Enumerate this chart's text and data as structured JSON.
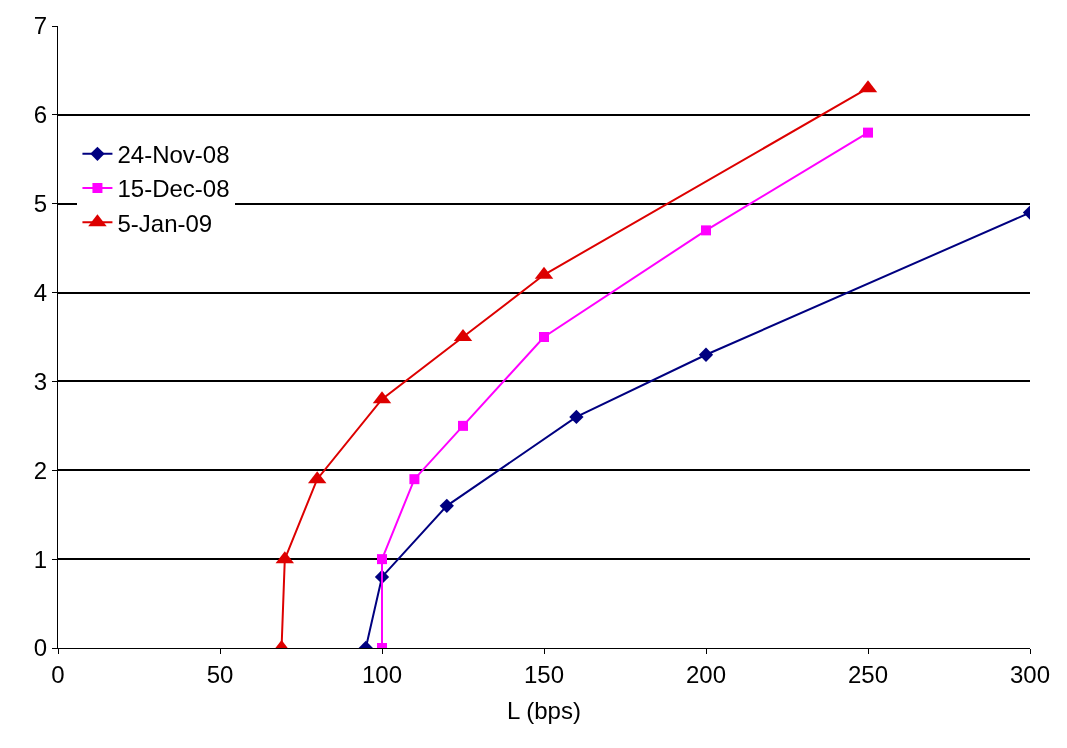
{
  "chart_data": {
    "type": "line",
    "xlabel": "L (bps)",
    "xlim": [
      0,
      300
    ],
    "xticks": [
      0,
      50,
      100,
      150,
      200,
      250,
      300
    ],
    "ylim": [
      0,
      7
    ],
    "yticks": [
      0,
      1,
      2,
      3,
      4,
      5,
      6,
      7
    ],
    "grid": "y",
    "legend": "top left",
    "line_style": "solid",
    "series": [
      {
        "name": "24-Nov-08",
        "color": "#000080",
        "marker": "diamond",
        "x": [
          95,
          100,
          120,
          160,
          200,
          300
        ],
        "values": [
          0,
          0.8,
          1.6,
          2.6,
          3.3,
          4.9
        ]
      },
      {
        "name": "15-Dec-08",
        "color": "#ff00ff",
        "marker": "square",
        "x": [
          100,
          100,
          110,
          125,
          150,
          200,
          250
        ],
        "values": [
          0,
          1.0,
          1.9,
          2.5,
          3.5,
          4.7,
          5.8
        ]
      },
      {
        "name": "5-Jan-09",
        "color": "#dd0000",
        "marker": "triangle",
        "x": [
          69,
          70,
          80,
          100,
          125,
          150,
          250
        ],
        "values": [
          0,
          1.0,
          1.9,
          2.8,
          3.5,
          4.2,
          6.3
        ]
      }
    ]
  }
}
